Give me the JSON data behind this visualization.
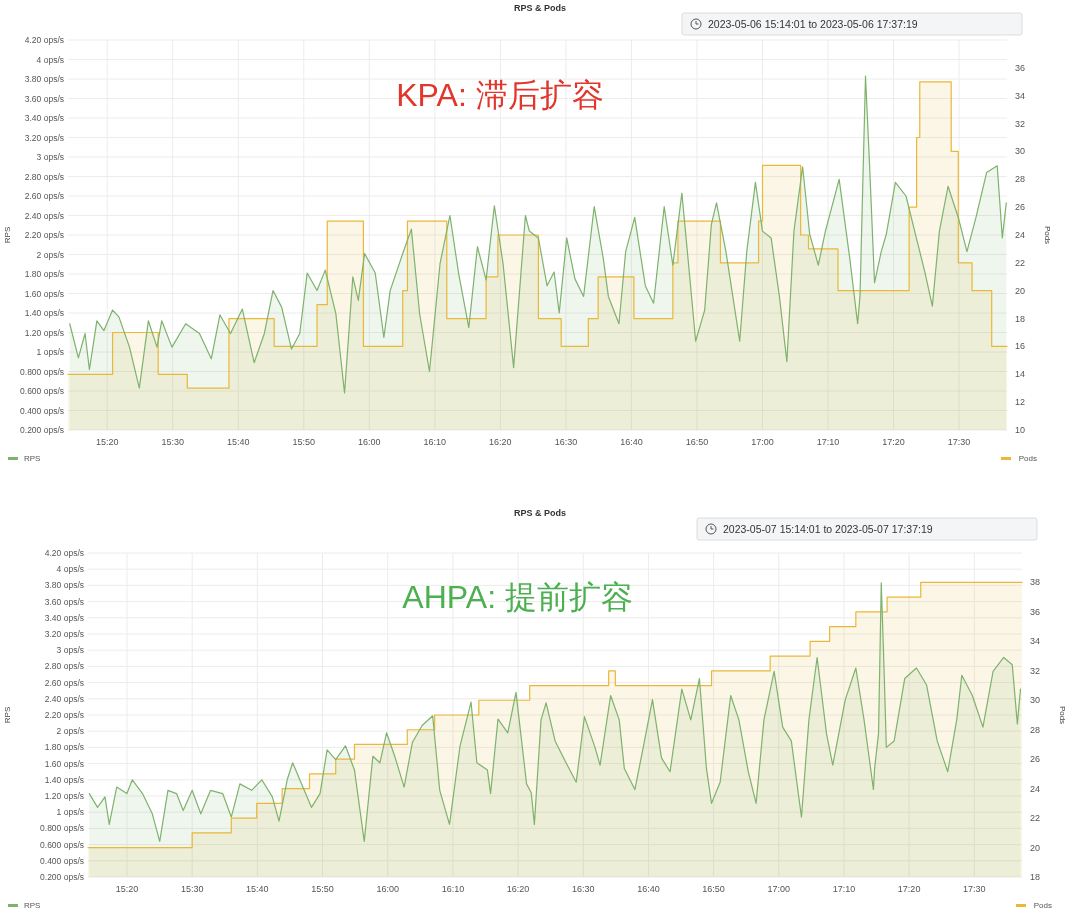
{
  "chart_data": [
    {
      "type": "area",
      "title": "RPS & Pods",
      "ylabel": "RPS",
      "y2label": "Pods",
      "annotations": [
        "KPA: 滞后扩容",
        "2023-05-06 15:14:01 to 2023-05-06 17:37:19"
      ],
      "xlim": [
        15.2336,
        17.6219
      ],
      "xticks": [
        {
          "value": 15.3333,
          "label": "15:20"
        },
        {
          "value": 15.5,
          "label": "15:30"
        },
        {
          "value": 15.6667,
          "label": "15:40"
        },
        {
          "value": 15.8333,
          "label": "15:50"
        },
        {
          "value": 16,
          "label": "16:00"
        },
        {
          "value": 16.1667,
          "label": "16:10"
        },
        {
          "value": 16.3333,
          "label": "16:20"
        },
        {
          "value": 16.5,
          "label": "16:30"
        },
        {
          "value": 16.6667,
          "label": "16:40"
        },
        {
          "value": 16.8333,
          "label": "16:50"
        },
        {
          "value": 17,
          "label": "17:00"
        },
        {
          "value": 17.1667,
          "label": "17:10"
        },
        {
          "value": 17.3333,
          "label": "17:20"
        },
        {
          "value": 17.5,
          "label": "17:30"
        }
      ],
      "ylim": [
        0.2,
        4.2
      ],
      "yticks": [
        {
          "value": 0.2,
          "label": "0.200 ops/s"
        },
        {
          "value": 0.4,
          "label": "0.400 ops/s"
        },
        {
          "value": 0.6,
          "label": "0.600 ops/s"
        },
        {
          "value": 0.8,
          "label": "0.800 ops/s"
        },
        {
          "value": 1,
          "label": "1 ops/s"
        },
        {
          "value": 1.2,
          "label": "1.20 ops/s"
        },
        {
          "value": 1.4,
          "label": "1.40 ops/s"
        },
        {
          "value": 1.6,
          "label": "1.60 ops/s"
        },
        {
          "value": 1.8,
          "label": "1.80 ops/s"
        },
        {
          "value": 2,
          "label": "2 ops/s"
        },
        {
          "value": 2.2,
          "label": "2.20 ops/s"
        },
        {
          "value": 2.4,
          "label": "2.40 ops/s"
        },
        {
          "value": 2.6,
          "label": "2.60 ops/s"
        },
        {
          "value": 2.8,
          "label": "2.80 ops/s"
        },
        {
          "value": 3,
          "label": "3 ops/s"
        },
        {
          "value": 3.2,
          "label": "3.20 ops/s"
        },
        {
          "value": 3.4,
          "label": "3.40 ops/s"
        },
        {
          "value": 3.6,
          "label": "3.60 ops/s"
        },
        {
          "value": 3.8,
          "label": "3.80 ops/s"
        },
        {
          "value": 4,
          "label": "4 ops/s"
        },
        {
          "value": 4.2,
          "label": "4.20 ops/s"
        }
      ],
      "y2lim": [
        10,
        38
      ],
      "y2ticks": [
        10,
        12,
        14,
        16,
        18,
        20,
        22,
        24,
        26,
        28,
        30,
        32,
        34,
        36
      ],
      "grid": true,
      "legend": "bottom",
      "series": [
        {
          "name": "RPS",
          "color": "#7eb26d",
          "x": [
            15.238,
            15.26,
            15.277,
            15.288,
            15.307,
            15.325,
            15.347,
            15.363,
            15.39,
            15.415,
            15.438,
            15.46,
            15.472,
            15.498,
            15.533,
            15.568,
            15.598,
            15.62,
            15.647,
            15.677,
            15.707,
            15.733,
            15.755,
            15.777,
            15.802,
            15.823,
            15.842,
            15.867,
            15.888,
            15.915,
            15.937,
            15.958,
            15.972,
            15.988,
            16.015,
            16.037,
            16.053,
            16.085,
            16.107,
            16.128,
            16.153,
            16.18,
            16.205,
            16.227,
            16.253,
            16.275,
            16.297,
            16.318,
            16.34,
            16.367,
            16.397,
            16.407,
            16.43,
            16.452,
            16.47,
            16.483,
            16.502,
            16.523,
            16.545,
            16.572,
            16.595,
            16.608,
            16.635,
            16.652,
            16.675,
            16.702,
            16.723,
            16.75,
            16.772,
            16.795,
            16.817,
            16.83,
            16.853,
            16.87,
            16.883,
            16.907,
            16.942,
            16.96,
            16.982,
            17.0,
            17.022,
            17.043,
            17.062,
            17.08,
            17.102,
            17.12,
            17.142,
            17.16,
            17.195,
            17.222,
            17.242,
            17.248,
            17.262,
            17.272,
            17.285,
            17.302,
            17.315,
            17.338,
            17.365,
            17.387,
            17.413,
            17.432,
            17.45,
            17.472,
            17.498,
            17.52,
            17.543,
            17.57,
            17.597,
            17.61,
            17.62
          ],
          "values": [
            1.29,
            0.94,
            1.19,
            0.82,
            1.32,
            1.22,
            1.43,
            1.36,
            1.05,
            0.63,
            1.32,
            1.05,
            1.32,
            1.05,
            1.29,
            1.19,
            0.93,
            1.38,
            1.19,
            1.44,
            0.89,
            1.19,
            1.63,
            1.46,
            1.03,
            1.19,
            1.81,
            1.63,
            1.84,
            1.39,
            0.58,
            1.77,
            1.53,
            2.01,
            1.81,
            1.15,
            1.63,
            2.01,
            2.26,
            1.39,
            0.8,
            1.91,
            2.4,
            1.81,
            1.25,
            2.08,
            1.74,
            2.5,
            1.91,
            0.84,
            2.4,
            2.24,
            2.17,
            1.68,
            1.82,
            1.4,
            2.17,
            1.75,
            1.57,
            2.49,
            1.96,
            1.57,
            1.29,
            2.03,
            2.38,
            1.68,
            1.5,
            2.49,
            1.89,
            2.63,
            1.68,
            1.11,
            1.43,
            2.31,
            2.53,
            2.03,
            1.11,
            2.03,
            2.74,
            2.24,
            2.17,
            1.57,
            0.9,
            2.24,
            2.9,
            2.21,
            1.89,
            2.24,
            2.77,
            1.96,
            1.29,
            1.57,
            3.83,
            2.95,
            1.71,
            2.03,
            2.21,
            2.74,
            2.6,
            2.24,
            1.82,
            1.47,
            2.24,
            2.7,
            2.38,
            2.03,
            2.38,
            2.84,
            2.91,
            2.17,
            2.53
          ]
        },
        {
          "name": "Pods",
          "color": "#eab839",
          "axis": "y2",
          "x": [
            15.2336,
            15.347,
            15.347,
            15.463,
            15.463,
            15.537,
            15.537,
            15.643,
            15.643,
            15.758,
            15.758,
            15.867,
            15.867,
            15.893,
            15.893,
            15.985,
            15.985,
            16.085,
            16.085,
            16.097,
            16.097,
            16.197,
            16.197,
            16.297,
            16.297,
            16.327,
            16.327,
            16.43,
            16.43,
            16.488,
            16.488,
            16.557,
            16.557,
            16.582,
            16.582,
            16.673,
            16.673,
            16.772,
            16.772,
            16.785,
            16.785,
            16.893,
            16.893,
            16.99,
            16.99,
            17.0,
            17.0,
            17.097,
            17.097,
            17.117,
            17.117,
            17.192,
            17.192,
            17.373,
            17.373,
            17.392,
            17.392,
            17.4,
            17.4,
            17.48,
            17.48,
            17.498,
            17.498,
            17.533,
            17.533,
            17.583,
            17.583,
            17.6219
          ],
          "values": [
            14,
            14,
            17,
            17,
            14,
            14,
            13,
            13,
            18,
            18,
            16,
            16,
            19,
            19,
            25,
            25,
            16,
            16,
            20,
            20,
            25,
            25,
            18,
            18,
            21,
            21,
            24,
            24,
            18,
            18,
            16,
            16,
            18,
            18,
            21,
            21,
            18,
            18,
            22,
            22,
            25,
            25,
            22,
            22,
            25,
            25,
            29,
            29,
            24,
            24,
            23,
            23,
            20,
            20,
            26,
            26,
            31,
            31,
            35,
            35,
            30,
            30,
            22,
            22,
            20,
            20,
            16,
            16
          ]
        }
      ]
    },
    {
      "type": "area",
      "title": "RPS & Pods",
      "ylabel": "RPS",
      "y2label": "Pods",
      "annotations": [
        "AHPA:  提前扩容",
        "2023-05-07 15:14:01 to 2023-05-07 17:37:19"
      ],
      "xlim": [
        15.2336,
        17.6219
      ],
      "xticks": [
        {
          "value": 15.3333,
          "label": "15:20"
        },
        {
          "value": 15.5,
          "label": "15:30"
        },
        {
          "value": 15.6667,
          "label": "15:40"
        },
        {
          "value": 15.8333,
          "label": "15:50"
        },
        {
          "value": 16,
          "label": "16:00"
        },
        {
          "value": 16.1667,
          "label": "16:10"
        },
        {
          "value": 16.3333,
          "label": "16:20"
        },
        {
          "value": 16.5,
          "label": "16:30"
        },
        {
          "value": 16.6667,
          "label": "16:40"
        },
        {
          "value": 16.8333,
          "label": "16:50"
        },
        {
          "value": 17,
          "label": "17:00"
        },
        {
          "value": 17.1667,
          "label": "17:10"
        },
        {
          "value": 17.3333,
          "label": "17:20"
        },
        {
          "value": 17.5,
          "label": "17:30"
        }
      ],
      "ylim": [
        0.2,
        4.2
      ],
      "yticks": [
        {
          "value": 0.2,
          "label": "0.200 ops/s"
        },
        {
          "value": 0.4,
          "label": "0.400 ops/s"
        },
        {
          "value": 0.6,
          "label": "0.600 ops/s"
        },
        {
          "value": 0.8,
          "label": "0.800 ops/s"
        },
        {
          "value": 1,
          "label": "1 ops/s"
        },
        {
          "value": 1.2,
          "label": "1.20 ops/s"
        },
        {
          "value": 1.4,
          "label": "1.40 ops/s"
        },
        {
          "value": 1.6,
          "label": "1.60 ops/s"
        },
        {
          "value": 1.8,
          "label": "1.80 ops/s"
        },
        {
          "value": 2,
          "label": "2 ops/s"
        },
        {
          "value": 2.2,
          "label": "2.20 ops/s"
        },
        {
          "value": 2.4,
          "label": "2.40 ops/s"
        },
        {
          "value": 2.6,
          "label": "2.60 ops/s"
        },
        {
          "value": 2.8,
          "label": "2.80 ops/s"
        },
        {
          "value": 3,
          "label": "3 ops/s"
        },
        {
          "value": 3.2,
          "label": "3.20 ops/s"
        },
        {
          "value": 3.4,
          "label": "3.40 ops/s"
        },
        {
          "value": 3.6,
          "label": "3.60 ops/s"
        },
        {
          "value": 3.8,
          "label": "3.80 ops/s"
        },
        {
          "value": 4,
          "label": "4 ops/s"
        },
        {
          "value": 4.2,
          "label": "4.20 ops/s"
        }
      ],
      "y2lim": [
        18,
        40
      ],
      "y2ticks": [
        18,
        20,
        22,
        24,
        26,
        28,
        30,
        32,
        34,
        36,
        38
      ],
      "grid": true,
      "legend": "bottom",
      "series": [
        {
          "name": "RPS",
          "color": "#7eb26d",
          "x": [
            15.237,
            15.258,
            15.277,
            15.288,
            15.307,
            15.333,
            15.347,
            15.373,
            15.398,
            15.417,
            15.438,
            15.46,
            15.477,
            15.5,
            15.522,
            15.547,
            15.578,
            15.6,
            15.622,
            15.652,
            15.678,
            15.705,
            15.722,
            15.743,
            15.757,
            15.783,
            15.805,
            15.827,
            15.845,
            15.867,
            15.892,
            15.915,
            15.94,
            15.962,
            15.98,
            15.997,
            16.018,
            16.042,
            16.063,
            16.088,
            16.115,
            16.133,
            16.158,
            16.185,
            16.213,
            16.228,
            16.255,
            16.263,
            16.282,
            16.307,
            16.328,
            16.355,
            16.367,
            16.375,
            16.392,
            16.405,
            16.428,
            16.455,
            16.482,
            16.503,
            16.53,
            16.543,
            16.57,
            16.592,
            16.605,
            16.632,
            16.655,
            16.677,
            16.7,
            16.722,
            16.752,
            16.775,
            16.797,
            16.815,
            16.828,
            16.85,
            16.877,
            16.898,
            16.922,
            16.942,
            16.962,
            16.988,
            17.01,
            17.032,
            17.058,
            17.077,
            17.098,
            17.122,
            17.138,
            17.17,
            17.197,
            17.218,
            17.242,
            17.245,
            17.255,
            17.262,
            17.268,
            17.275,
            17.295,
            17.322,
            17.352,
            17.378,
            17.405,
            17.432,
            17.455,
            17.468,
            17.495,
            17.522,
            17.548,
            17.575,
            17.597,
            17.61,
            17.618
          ],
          "values": [
            1.23,
            1.06,
            1.19,
            0.85,
            1.31,
            1.23,
            1.4,
            1.23,
            0.98,
            0.64,
            1.27,
            1.23,
            1.02,
            1.27,
            0.98,
            1.27,
            1.23,
            0.94,
            1.35,
            1.27,
            1.4,
            1.19,
            0.89,
            1.4,
            1.61,
            1.31,
            1.06,
            1.23,
            1.77,
            1.65,
            1.82,
            1.52,
            0.64,
            1.69,
            1.61,
            1.98,
            1.69,
            1.31,
            1.86,
            2.07,
            2.19,
            1.27,
            0.85,
            1.82,
            2.36,
            1.61,
            1.52,
            1.23,
            2.15,
            1.98,
            2.48,
            1.35,
            1.24,
            0.85,
            2.14,
            2.35,
            1.88,
            1.62,
            1.37,
            2.18,
            1.8,
            1.58,
            2.44,
            2.14,
            1.54,
            1.28,
            1.84,
            2.39,
            1.67,
            1.5,
            2.52,
            2.14,
            2.65,
            1.54,
            1.11,
            1.37,
            2.44,
            2.14,
            1.5,
            1.11,
            2.14,
            2.74,
            2.05,
            1.88,
            0.94,
            2.14,
            2.91,
            1.97,
            1.58,
            2.39,
            2.78,
            2.14,
            1.28,
            1.54,
            1.97,
            3.83,
            2.95,
            1.8,
            1.88,
            2.65,
            2.78,
            2.57,
            1.88,
            1.5,
            2.14,
            2.69,
            2.44,
            2.05,
            2.74,
            2.91,
            2.82,
            2.09,
            2.52
          ]
        },
        {
          "name": "Pods",
          "color": "#eab839",
          "axis": "y2",
          "x": [
            15.2336,
            15.5,
            15.5,
            15.6,
            15.6,
            15.665,
            15.665,
            15.73,
            15.73,
            15.8,
            15.8,
            15.867,
            15.867,
            15.915,
            15.915,
            16.05,
            16.05,
            16.12,
            16.12,
            16.233,
            16.233,
            16.363,
            16.363,
            16.565,
            16.565,
            16.582,
            16.582,
            16.828,
            16.828,
            16.978,
            16.978,
            17.08,
            17.08,
            17.13,
            17.13,
            17.197,
            17.197,
            17.277,
            17.277,
            17.363,
            17.363,
            17.6219
          ],
          "values": [
            20,
            20,
            21,
            21,
            22,
            22,
            23,
            23,
            24,
            24,
            25,
            25,
            26,
            26,
            27,
            27,
            28,
            28,
            29,
            29,
            30,
            30,
            31,
            31,
            32,
            32,
            31,
            31,
            32,
            32,
            33,
            33,
            34,
            34,
            35,
            35,
            36,
            36,
            37,
            37,
            38,
            38
          ]
        }
      ]
    }
  ]
}
